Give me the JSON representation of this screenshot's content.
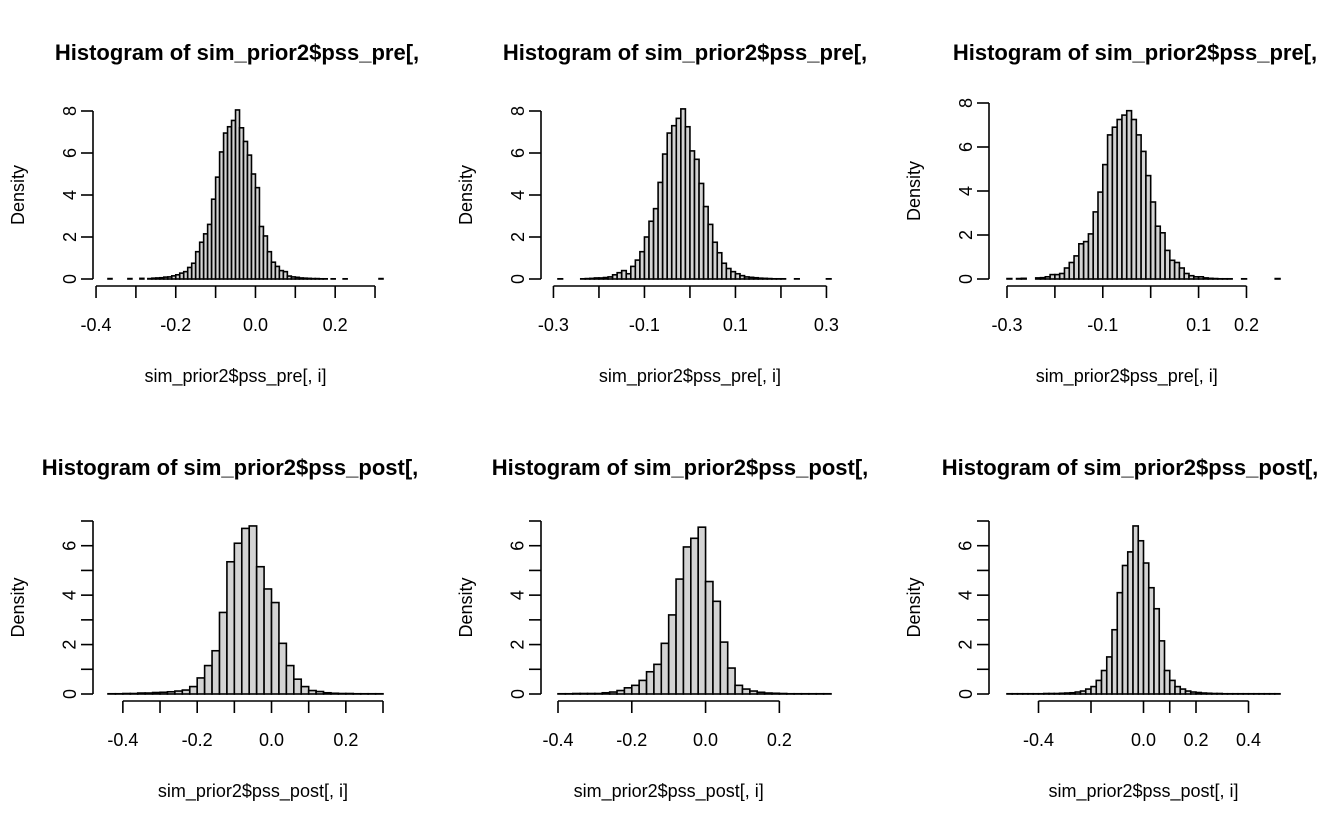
{
  "chart_data": [
    {
      "type": "bar",
      "title": "Histogram of sim_prior2$pss_pre[,",
      "xlabel": "sim_prior2$pss_pre[, i]",
      "ylabel": "Density",
      "xlim": [
        -0.37,
        0.32
      ],
      "ylim": [
        0,
        8
      ],
      "xticks": [
        -0.4,
        -0.3,
        -0.2,
        -0.1,
        0.0,
        0.1,
        0.2,
        0.3
      ],
      "xtick_labels": [
        "-0.4",
        "",
        "-0.2",
        "",
        "0.0",
        "",
        "0.2",
        ""
      ],
      "yticks": [
        0,
        2,
        4,
        6,
        8
      ],
      "ytick_labels": [
        "0",
        "2",
        "4",
        "6",
        "8"
      ],
      "bin_start": -0.37,
      "bin_width": 0.01,
      "values": [
        0.02,
        0,
        0,
        0,
        0,
        0.02,
        0,
        0,
        0.03,
        0,
        0.02,
        0.04,
        0.05,
        0.06,
        0.09,
        0.1,
        0.15,
        0.2,
        0.28,
        0.35,
        0.55,
        0.75,
        1.3,
        1.75,
        2.15,
        2.6,
        3.8,
        4.85,
        6.05,
        6.95,
        7.25,
        7.55,
        8.05,
        7.2,
        6.55,
        5.9,
        5.0,
        4.35,
        2.5,
        2.05,
        1.3,
        0.8,
        0.6,
        0.4,
        0.35,
        0.14,
        0.1,
        0.08,
        0.05,
        0.04,
        0.03,
        0.02,
        0.02,
        0.01,
        0.01,
        0,
        0.01,
        0,
        0,
        0.01,
        0,
        0,
        0,
        0,
        0,
        0,
        0,
        0,
        0.02
      ]
    },
    {
      "type": "bar",
      "title": "Histogram of sim_prior2$pss_pre[,",
      "xlabel": "sim_prior2$pss_pre[, i]",
      "ylabel": "Density",
      "xlim": [
        -0.29,
        0.31
      ],
      "ylim": [
        0,
        8
      ],
      "xticks": [
        -0.3,
        -0.2,
        -0.1,
        0.0,
        0.1,
        0.2,
        0.3
      ],
      "xtick_labels": [
        "-0.3",
        "",
        "-0.1",
        "",
        "0.1",
        "",
        "0.3"
      ],
      "yticks": [
        0,
        2,
        4,
        6,
        8
      ],
      "ytick_labels": [
        "0",
        "2",
        "4",
        "6",
        "8"
      ],
      "bin_start": -0.29,
      "bin_width": 0.01,
      "values": [
        0.01,
        0,
        0,
        0,
        0,
        0.01,
        0.02,
        0.03,
        0.05,
        0.05,
        0.07,
        0.1,
        0.2,
        0.3,
        0.4,
        0.25,
        0.6,
        0.9,
        1.3,
        2.0,
        2.75,
        3.35,
        4.6,
        5.95,
        6.95,
        7.3,
        7.65,
        8.1,
        7.25,
        6.1,
        5.7,
        4.55,
        3.45,
        2.6,
        1.75,
        1.25,
        0.75,
        0.5,
        0.35,
        0.25,
        0.16,
        0.1,
        0.08,
        0.06,
        0.04,
        0.03,
        0.02,
        0.01,
        0.01,
        0.01,
        0,
        0,
        0.01,
        0,
        0,
        0,
        0,
        0,
        0,
        0.01
      ]
    },
    {
      "type": "bar",
      "title": "Histogram of sim_prior2$pss_pre[,",
      "xlabel": "sim_prior2$pss_pre[, i]",
      "ylabel": "Density",
      "xlim": [
        -0.3,
        0.27
      ],
      "ylim": [
        0,
        8
      ],
      "xticks": [
        -0.3,
        -0.2,
        -0.1,
        0.0,
        0.1,
        0.2
      ],
      "xtick_labels": [
        "-0.3",
        "",
        "-0.1",
        "",
        "0.1",
        "0.2"
      ],
      "yticks": [
        0,
        2,
        4,
        6,
        8
      ],
      "ytick_labels": [
        "0",
        "2",
        "4",
        "6",
        "8"
      ],
      "bin_start": -0.3,
      "bin_width": 0.01,
      "values": [
        0.02,
        0,
        0.02,
        0.03,
        0,
        0,
        0.05,
        0.06,
        0.1,
        0.2,
        0.2,
        0.25,
        0.5,
        0.75,
        1.05,
        1.6,
        1.7,
        2.05,
        3.05,
        3.95,
        5.2,
        6.55,
        6.9,
        7.25,
        7.45,
        7.65,
        7.25,
        6.55,
        5.8,
        4.7,
        3.5,
        2.4,
        2.1,
        1.3,
        0.85,
        0.75,
        0.5,
        0.25,
        0.15,
        0.1,
        0.1,
        0.05,
        0.03,
        0.02,
        0.01,
        0.01,
        0.01,
        0,
        0,
        0.01,
        0,
        0,
        0,
        0,
        0,
        0,
        0.02
      ]
    },
    {
      "type": "bar",
      "title": "Histogram of sim_prior2$pss_post[,",
      "xlabel": "sim_prior2$pss_post[, i]",
      "ylabel": "Density",
      "xlim": [
        -0.44,
        0.3
      ],
      "ylim": [
        0,
        7
      ],
      "xticks": [
        -0.4,
        -0.3,
        -0.2,
        -0.1,
        0.0,
        0.1,
        0.2,
        0.3
      ],
      "xtick_labels": [
        "-0.4",
        "",
        "-0.2",
        "",
        "0.0",
        "",
        "0.2",
        ""
      ],
      "yticks": [
        0,
        1,
        2,
        3,
        4,
        5,
        6,
        7
      ],
      "ytick_labels": [
        "0",
        "",
        "2",
        "",
        "4",
        "",
        "6",
        ""
      ],
      "bin_start": -0.44,
      "bin_width": 0.02,
      "values": [
        0.01,
        0.01,
        0.02,
        0.02,
        0.04,
        0.04,
        0.06,
        0.07,
        0.09,
        0.12,
        0.16,
        0.3,
        0.65,
        1.15,
        1.75,
        3.3,
        5.35,
        6.1,
        6.7,
        6.8,
        5.15,
        4.25,
        3.7,
        2.05,
        1.15,
        0.6,
        0.3,
        0.14,
        0.1,
        0.05,
        0.03,
        0.02,
        0.02,
        0.01,
        0.01,
        0.01,
        0.01
      ]
    },
    {
      "type": "bar",
      "title": "Histogram of sim_prior2$pss_post[,",
      "xlabel": "sim_prior2$pss_post[, i]",
      "ylabel": "Density",
      "xlim": [
        -0.4,
        0.34
      ],
      "ylim": [
        0,
        7
      ],
      "xticks": [
        -0.4,
        -0.2,
        0.0,
        0.2
      ],
      "xtick_labels": [
        "-0.4",
        "-0.2",
        "0.0",
        "0.2"
      ],
      "yticks": [
        0,
        1,
        2,
        3,
        4,
        5,
        6,
        7
      ],
      "ytick_labels": [
        "0",
        "",
        "2",
        "",
        "4",
        "",
        "6",
        ""
      ],
      "bin_start": -0.4,
      "bin_width": 0.02,
      "values": [
        0.01,
        0.01,
        0.02,
        0.02,
        0.02,
        0.02,
        0.05,
        0.08,
        0.14,
        0.25,
        0.35,
        0.55,
        0.9,
        1.2,
        2.05,
        3.2,
        4.65,
        5.95,
        6.3,
        6.75,
        4.55,
        3.75,
        2.1,
        1.05,
        0.35,
        0.2,
        0.12,
        0.07,
        0.04,
        0.03,
        0.02,
        0.01,
        0.01,
        0.01,
        0.01,
        0.01,
        0.01
      ]
    },
    {
      "type": "bar",
      "title": "Histogram of sim_prior2$pss_post[,",
      "xlabel": "sim_prior2$pss_post[, i]",
      "ylabel": "Density",
      "xlim": [
        -0.52,
        0.52
      ],
      "ylim": [
        0,
        7
      ],
      "xticks": [
        -0.4,
        -0.2,
        0.0,
        0.1,
        0.2,
        0.4
      ],
      "xtick_labels": [
        "-0.4",
        "",
        "0.0",
        "",
        "0.2",
        "0.4"
      ],
      "yticks": [
        0,
        1,
        2,
        3,
        4,
        5,
        6,
        7
      ],
      "ytick_labels": [
        "0",
        "",
        "2",
        "",
        "4",
        "",
        "6",
        ""
      ],
      "bin_start": -0.52,
      "bin_width": 0.02,
      "values": [
        0.01,
        0.01,
        0.01,
        0.01,
        0.01,
        0.01,
        0.01,
        0.02,
        0.02,
        0.02,
        0.03,
        0.04,
        0.05,
        0.08,
        0.12,
        0.2,
        0.3,
        0.55,
        0.95,
        1.5,
        2.6,
        4.1,
        5.2,
        5.75,
        6.8,
        6.2,
        5.3,
        4.3,
        3.45,
        2.15,
        0.95,
        0.55,
        0.3,
        0.2,
        0.12,
        0.08,
        0.06,
        0.04,
        0.03,
        0.02,
        0.02,
        0.01,
        0.01,
        0.01,
        0.01,
        0.01,
        0.01,
        0.01,
        0.01,
        0.01,
        0.01,
        0.01
      ]
    }
  ]
}
